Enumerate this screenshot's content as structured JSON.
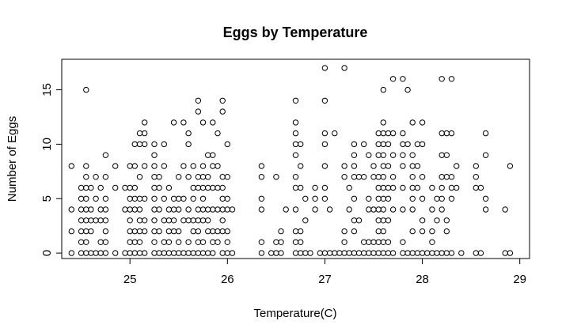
{
  "chart_data": {
    "type": "scatter",
    "title": "Eggs by Temperature",
    "xlabel": "Temperature(C)",
    "ylabel": "Number of Eggs",
    "xlim": [
      24.3,
      29.1
    ],
    "ylim": [
      -0.5,
      17.8
    ],
    "xticks": [
      25,
      26,
      27,
      28,
      29
    ],
    "yticks": [
      0,
      5,
      10,
      15
    ],
    "grid": false,
    "points": [
      [
        24.4,
        8
      ],
      [
        24.4,
        4
      ],
      [
        24.4,
        2
      ],
      [
        24.4,
        0
      ],
      [
        24.5,
        6
      ],
      [
        24.5,
        5
      ],
      [
        24.5,
        4
      ],
      [
        24.5,
        3
      ],
      [
        24.5,
        2
      ],
      [
        24.5,
        1
      ],
      [
        24.5,
        0
      ],
      [
        24.55,
        15
      ],
      [
        24.55,
        8
      ],
      [
        24.55,
        7
      ],
      [
        24.55,
        6
      ],
      [
        24.55,
        5
      ],
      [
        24.55,
        4
      ],
      [
        24.55,
        3
      ],
      [
        24.55,
        2
      ],
      [
        24.55,
        1
      ],
      [
        24.55,
        0
      ],
      [
        24.6,
        6
      ],
      [
        24.6,
        4
      ],
      [
        24.6,
        3
      ],
      [
        24.6,
        2
      ],
      [
        24.6,
        0
      ],
      [
        24.65,
        7
      ],
      [
        24.65,
        5
      ],
      [
        24.65,
        3
      ],
      [
        24.65,
        0
      ],
      [
        24.7,
        6
      ],
      [
        24.7,
        4
      ],
      [
        24.7,
        3
      ],
      [
        24.7,
        1
      ],
      [
        24.7,
        0
      ],
      [
        24.75,
        9
      ],
      [
        24.75,
        7
      ],
      [
        24.75,
        5
      ],
      [
        24.75,
        4
      ],
      [
        24.75,
        3
      ],
      [
        24.75,
        2
      ],
      [
        24.75,
        1
      ],
      [
        24.75,
        0
      ],
      [
        24.85,
        8
      ],
      [
        24.85,
        6
      ],
      [
        24.85,
        0
      ],
      [
        24.95,
        6
      ],
      [
        24.95,
        4
      ],
      [
        24.95,
        0
      ],
      [
        25.0,
        8
      ],
      [
        25.0,
        6
      ],
      [
        25.0,
        5
      ],
      [
        25.0,
        4
      ],
      [
        25.0,
        3
      ],
      [
        25.0,
        2
      ],
      [
        25.0,
        1
      ],
      [
        25.0,
        0
      ],
      [
        25.05,
        10
      ],
      [
        25.05,
        8
      ],
      [
        25.05,
        6
      ],
      [
        25.05,
        5
      ],
      [
        25.05,
        4
      ],
      [
        25.05,
        2
      ],
      [
        25.05,
        1
      ],
      [
        25.05,
        0
      ],
      [
        25.1,
        11
      ],
      [
        25.1,
        10
      ],
      [
        25.1,
        7
      ],
      [
        25.1,
        5
      ],
      [
        25.1,
        4
      ],
      [
        25.1,
        3
      ],
      [
        25.1,
        2
      ],
      [
        25.1,
        1
      ],
      [
        25.1,
        0
      ],
      [
        25.15,
        12
      ],
      [
        25.15,
        11
      ],
      [
        25.15,
        10
      ],
      [
        25.15,
        8
      ],
      [
        25.15,
        5
      ],
      [
        25.15,
        3
      ],
      [
        25.15,
        2
      ],
      [
        25.15,
        0
      ],
      [
        25.25,
        10
      ],
      [
        25.25,
        9
      ],
      [
        25.25,
        8
      ],
      [
        25.25,
        7
      ],
      [
        25.25,
        6
      ],
      [
        25.25,
        5
      ],
      [
        25.25,
        4
      ],
      [
        25.25,
        3
      ],
      [
        25.25,
        2
      ],
      [
        25.25,
        1
      ],
      [
        25.25,
        0
      ],
      [
        25.3,
        7
      ],
      [
        25.3,
        6
      ],
      [
        25.3,
        4
      ],
      [
        25.3,
        2
      ],
      [
        25.3,
        0
      ],
      [
        25.35,
        10
      ],
      [
        25.35,
        8
      ],
      [
        25.35,
        5
      ],
      [
        25.35,
        3
      ],
      [
        25.35,
        1
      ],
      [
        25.35,
        0
      ],
      [
        25.4,
        6
      ],
      [
        25.4,
        4
      ],
      [
        25.4,
        3
      ],
      [
        25.4,
        2
      ],
      [
        25.4,
        1
      ],
      [
        25.4,
        0
      ],
      [
        25.45,
        12
      ],
      [
        25.45,
        5
      ],
      [
        25.45,
        4
      ],
      [
        25.45,
        3
      ],
      [
        25.45,
        2
      ],
      [
        25.45,
        0
      ],
      [
        25.5,
        7
      ],
      [
        25.5,
        5
      ],
      [
        25.5,
        4
      ],
      [
        25.5,
        2
      ],
      [
        25.5,
        1
      ],
      [
        25.5,
        0
      ],
      [
        25.55,
        12
      ],
      [
        25.55,
        8
      ],
      [
        25.55,
        5
      ],
      [
        25.55,
        3
      ],
      [
        25.55,
        0
      ],
      [
        25.6,
        11
      ],
      [
        25.6,
        10
      ],
      [
        25.6,
        7
      ],
      [
        25.6,
        4
      ],
      [
        25.6,
        3
      ],
      [
        25.6,
        1
      ],
      [
        25.6,
        0
      ],
      [
        25.65,
        8
      ],
      [
        25.65,
        6
      ],
      [
        25.65,
        5
      ],
      [
        25.65,
        3
      ],
      [
        25.65,
        2
      ],
      [
        25.65,
        0
      ],
      [
        25.7,
        14
      ],
      [
        25.7,
        13
      ],
      [
        25.7,
        7
      ],
      [
        25.7,
        6
      ],
      [
        25.7,
        4
      ],
      [
        25.7,
        3
      ],
      [
        25.7,
        2
      ],
      [
        25.7,
        1
      ],
      [
        25.7,
        0
      ],
      [
        25.75,
        12
      ],
      [
        25.75,
        8
      ],
      [
        25.75,
        7
      ],
      [
        25.75,
        6
      ],
      [
        25.75,
        5
      ],
      [
        25.75,
        4
      ],
      [
        25.75,
        3
      ],
      [
        25.75,
        1
      ],
      [
        25.75,
        0
      ],
      [
        25.8,
        9
      ],
      [
        25.8,
        7
      ],
      [
        25.8,
        6
      ],
      [
        25.8,
        4
      ],
      [
        25.8,
        3
      ],
      [
        25.8,
        2
      ],
      [
        25.8,
        0
      ],
      [
        25.85,
        12
      ],
      [
        25.85,
        9
      ],
      [
        25.85,
        8
      ],
      [
        25.85,
        6
      ],
      [
        25.85,
        4
      ],
      [
        25.85,
        2
      ],
      [
        25.85,
        1
      ],
      [
        25.85,
        0
      ],
      [
        25.9,
        11
      ],
      [
        25.9,
        8
      ],
      [
        25.9,
        6
      ],
      [
        25.9,
        4
      ],
      [
        25.9,
        2
      ],
      [
        25.9,
        1
      ],
      [
        25.95,
        14
      ],
      [
        25.95,
        13
      ],
      [
        25.95,
        7
      ],
      [
        25.95,
        6
      ],
      [
        25.95,
        5
      ],
      [
        25.95,
        4
      ],
      [
        25.95,
        3
      ],
      [
        25.95,
        2
      ],
      [
        25.95,
        0
      ],
      [
        26.0,
        10
      ],
      [
        26.0,
        7
      ],
      [
        26.0,
        5
      ],
      [
        26.0,
        4
      ],
      [
        26.0,
        2
      ],
      [
        26.0,
        1
      ],
      [
        26.0,
        0
      ],
      [
        26.05,
        4
      ],
      [
        26.05,
        0
      ],
      [
        26.35,
        8
      ],
      [
        26.35,
        7
      ],
      [
        26.35,
        5
      ],
      [
        26.35,
        4
      ],
      [
        26.35,
        1
      ],
      [
        26.35,
        0
      ],
      [
        26.45,
        0
      ],
      [
        26.5,
        7
      ],
      [
        26.5,
        1
      ],
      [
        26.5,
        0
      ],
      [
        26.55,
        2
      ],
      [
        26.55,
        1
      ],
      [
        26.55,
        0
      ],
      [
        26.6,
        4
      ],
      [
        26.7,
        14
      ],
      [
        26.7,
        12
      ],
      [
        26.7,
        11
      ],
      [
        26.7,
        10
      ],
      [
        26.7,
        9
      ],
      [
        26.7,
        7
      ],
      [
        26.7,
        6
      ],
      [
        26.7,
        4
      ],
      [
        26.7,
        2
      ],
      [
        26.7,
        1
      ],
      [
        26.7,
        0
      ],
      [
        26.75,
        10
      ],
      [
        26.75,
        8
      ],
      [
        26.75,
        6
      ],
      [
        26.75,
        2
      ],
      [
        26.75,
        1
      ],
      [
        26.75,
        0
      ],
      [
        26.8,
        5
      ],
      [
        26.8,
        3
      ],
      [
        26.8,
        0
      ],
      [
        26.85,
        0
      ],
      [
        26.9,
        6
      ],
      [
        26.9,
        5
      ],
      [
        26.9,
        4
      ],
      [
        26.95,
        0
      ],
      [
        27.0,
        17
      ],
      [
        27.0,
        14
      ],
      [
        27.0,
        11
      ],
      [
        27.0,
        10
      ],
      [
        27.0,
        8
      ],
      [
        27.0,
        6
      ],
      [
        27.0,
        5
      ],
      [
        27.0,
        0
      ],
      [
        27.05,
        4
      ],
      [
        27.05,
        0
      ],
      [
        27.1,
        11
      ],
      [
        27.1,
        0
      ],
      [
        27.15,
        0
      ],
      [
        27.2,
        17
      ],
      [
        27.2,
        8
      ],
      [
        27.2,
        7
      ],
      [
        27.2,
        2
      ],
      [
        27.2,
        1
      ],
      [
        27.2,
        0
      ],
      [
        27.25,
        6
      ],
      [
        27.25,
        4
      ],
      [
        27.25,
        0
      ],
      [
        27.3,
        10
      ],
      [
        27.3,
        9
      ],
      [
        27.3,
        8
      ],
      [
        27.3,
        7
      ],
      [
        27.3,
        5
      ],
      [
        27.3,
        3
      ],
      [
        27.3,
        2
      ],
      [
        27.3,
        0
      ],
      [
        27.35,
        7
      ],
      [
        27.35,
        3
      ],
      [
        27.35,
        0
      ],
      [
        27.4,
        10
      ],
      [
        27.4,
        7
      ],
      [
        27.4,
        1
      ],
      [
        27.4,
        0
      ],
      [
        27.45,
        9
      ],
      [
        27.45,
        5
      ],
      [
        27.45,
        4
      ],
      [
        27.45,
        1
      ],
      [
        27.45,
        0
      ],
      [
        27.5,
        8
      ],
      [
        27.5,
        7
      ],
      [
        27.5,
        4
      ],
      [
        27.5,
        1
      ],
      [
        27.5,
        0
      ],
      [
        27.55,
        11
      ],
      [
        27.55,
        10
      ],
      [
        27.55,
        9
      ],
      [
        27.55,
        7
      ],
      [
        27.55,
        6
      ],
      [
        27.55,
        5
      ],
      [
        27.55,
        4
      ],
      [
        27.55,
        3
      ],
      [
        27.55,
        2
      ],
      [
        27.55,
        1
      ],
      [
        27.55,
        0
      ],
      [
        27.6,
        15
      ],
      [
        27.6,
        12
      ],
      [
        27.6,
        11
      ],
      [
        27.6,
        10
      ],
      [
        27.6,
        9
      ],
      [
        27.6,
        8
      ],
      [
        27.6,
        7
      ],
      [
        27.6,
        6
      ],
      [
        27.6,
        5
      ],
      [
        27.6,
        4
      ],
      [
        27.6,
        3
      ],
      [
        27.6,
        2
      ],
      [
        27.6,
        1
      ],
      [
        27.6,
        0
      ],
      [
        27.65,
        11
      ],
      [
        27.65,
        10
      ],
      [
        27.65,
        8
      ],
      [
        27.65,
        6
      ],
      [
        27.65,
        5
      ],
      [
        27.65,
        3
      ],
      [
        27.65,
        1
      ],
      [
        27.65,
        0
      ],
      [
        27.7,
        16
      ],
      [
        27.7,
        11
      ],
      [
        27.7,
        9
      ],
      [
        27.7,
        7
      ],
      [
        27.7,
        6
      ],
      [
        27.7,
        4
      ],
      [
        27.7,
        0
      ],
      [
        27.8,
        16
      ],
      [
        27.8,
        11
      ],
      [
        27.8,
        10
      ],
      [
        27.8,
        9
      ],
      [
        27.8,
        8
      ],
      [
        27.8,
        6
      ],
      [
        27.8,
        4
      ],
      [
        27.8,
        1
      ],
      [
        27.8,
        0
      ],
      [
        27.85,
        15
      ],
      [
        27.85,
        10
      ],
      [
        27.85,
        0
      ],
      [
        27.9,
        12
      ],
      [
        27.9,
        9
      ],
      [
        27.9,
        8
      ],
      [
        27.9,
        7
      ],
      [
        27.9,
        6
      ],
      [
        27.9,
        5
      ],
      [
        27.9,
        4
      ],
      [
        27.9,
        2
      ],
      [
        27.9,
        0
      ],
      [
        27.95,
        10
      ],
      [
        27.95,
        8
      ],
      [
        27.95,
        6
      ],
      [
        27.95,
        0
      ],
      [
        28.0,
        12
      ],
      [
        28.0,
        10
      ],
      [
        28.0,
        7
      ],
      [
        28.0,
        5
      ],
      [
        28.0,
        3
      ],
      [
        28.0,
        2
      ],
      [
        28.0,
        0
      ],
      [
        28.05,
        0
      ],
      [
        28.1,
        6
      ],
      [
        28.1,
        4
      ],
      [
        28.1,
        2
      ],
      [
        28.1,
        1
      ],
      [
        28.1,
        0
      ],
      [
        28.15,
        5
      ],
      [
        28.15,
        3
      ],
      [
        28.15,
        0
      ],
      [
        28.2,
        16
      ],
      [
        28.2,
        11
      ],
      [
        28.2,
        9
      ],
      [
        28.2,
        7
      ],
      [
        28.2,
        6
      ],
      [
        28.2,
        5
      ],
      [
        28.2,
        4
      ],
      [
        28.2,
        0
      ],
      [
        28.25,
        11
      ],
      [
        28.25,
        9
      ],
      [
        28.25,
        7
      ],
      [
        28.25,
        3
      ],
      [
        28.25,
        2
      ],
      [
        28.25,
        0
      ],
      [
        28.3,
        16
      ],
      [
        28.3,
        11
      ],
      [
        28.3,
        7
      ],
      [
        28.3,
        6
      ],
      [
        28.3,
        5
      ],
      [
        28.3,
        0
      ],
      [
        28.35,
        8
      ],
      [
        28.35,
        6
      ],
      [
        28.4,
        0
      ],
      [
        28.55,
        8
      ],
      [
        28.55,
        7
      ],
      [
        28.55,
        6
      ],
      [
        28.55,
        0
      ],
      [
        28.6,
        6
      ],
      [
        28.6,
        0
      ],
      [
        28.65,
        11
      ],
      [
        28.65,
        9
      ],
      [
        28.65,
        5
      ],
      [
        28.65,
        4
      ],
      [
        28.85,
        4
      ],
      [
        28.85,
        0
      ],
      [
        28.9,
        8
      ],
      [
        28.9,
        0
      ]
    ]
  }
}
